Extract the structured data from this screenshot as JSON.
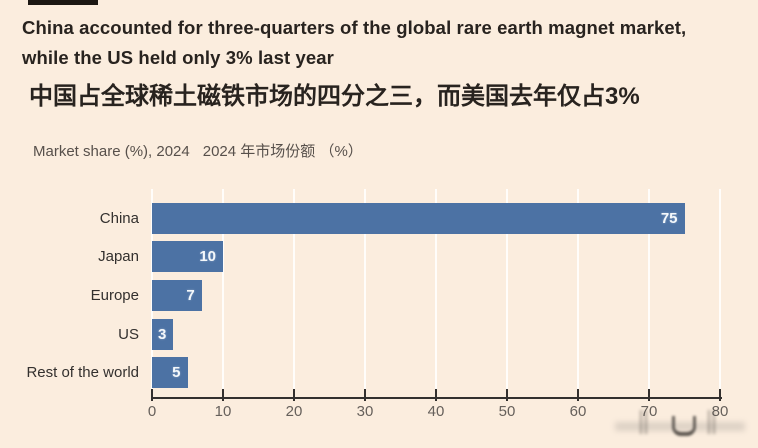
{
  "page": {
    "background_color": "#FBEDDE"
  },
  "header": {
    "marker_color": "#1C1713",
    "title_en_line1": "China accounted for three-quarters of the global rare earth magnet market,",
    "title_en_line2": "while the US held only 3% last year",
    "title_zh": "中国占全球稀土磁铁市场的四分之三，而美国去年仅占3%",
    "subtitle_en": "Market share (%), 2024",
    "subtitle_zh": "2024 年市场份额 （%）"
  },
  "chart_data": {
    "type": "bar",
    "orientation": "horizontal",
    "title": "China accounted for three-quarters of the global rare earth magnet market, while the US held only 3% last year",
    "title_zh": "中国占全球稀土磁铁市场的四分之三，而美国去年仅占3%",
    "subtitle": "Market share (%), 2024  2024 年市场份额 （%）",
    "categories": [
      "China",
      "Japan",
      "Europe",
      "US",
      "Rest of the world"
    ],
    "values": [
      75,
      10,
      7,
      3,
      5
    ],
    "xlabel": "Market share (%)",
    "ylabel": "",
    "xlim": [
      0,
      80
    ],
    "xticks": [
      0,
      10,
      20,
      30,
      40,
      50,
      60,
      70,
      80
    ],
    "grid": true,
    "legend": false,
    "bar_color": "#4C72A4",
    "value_label_color": "#F4F8FB",
    "axis_color": "#33302E",
    "tick_label_color": "#66605B",
    "gridline_color": "rgba(255,255,255,0.85)"
  }
}
